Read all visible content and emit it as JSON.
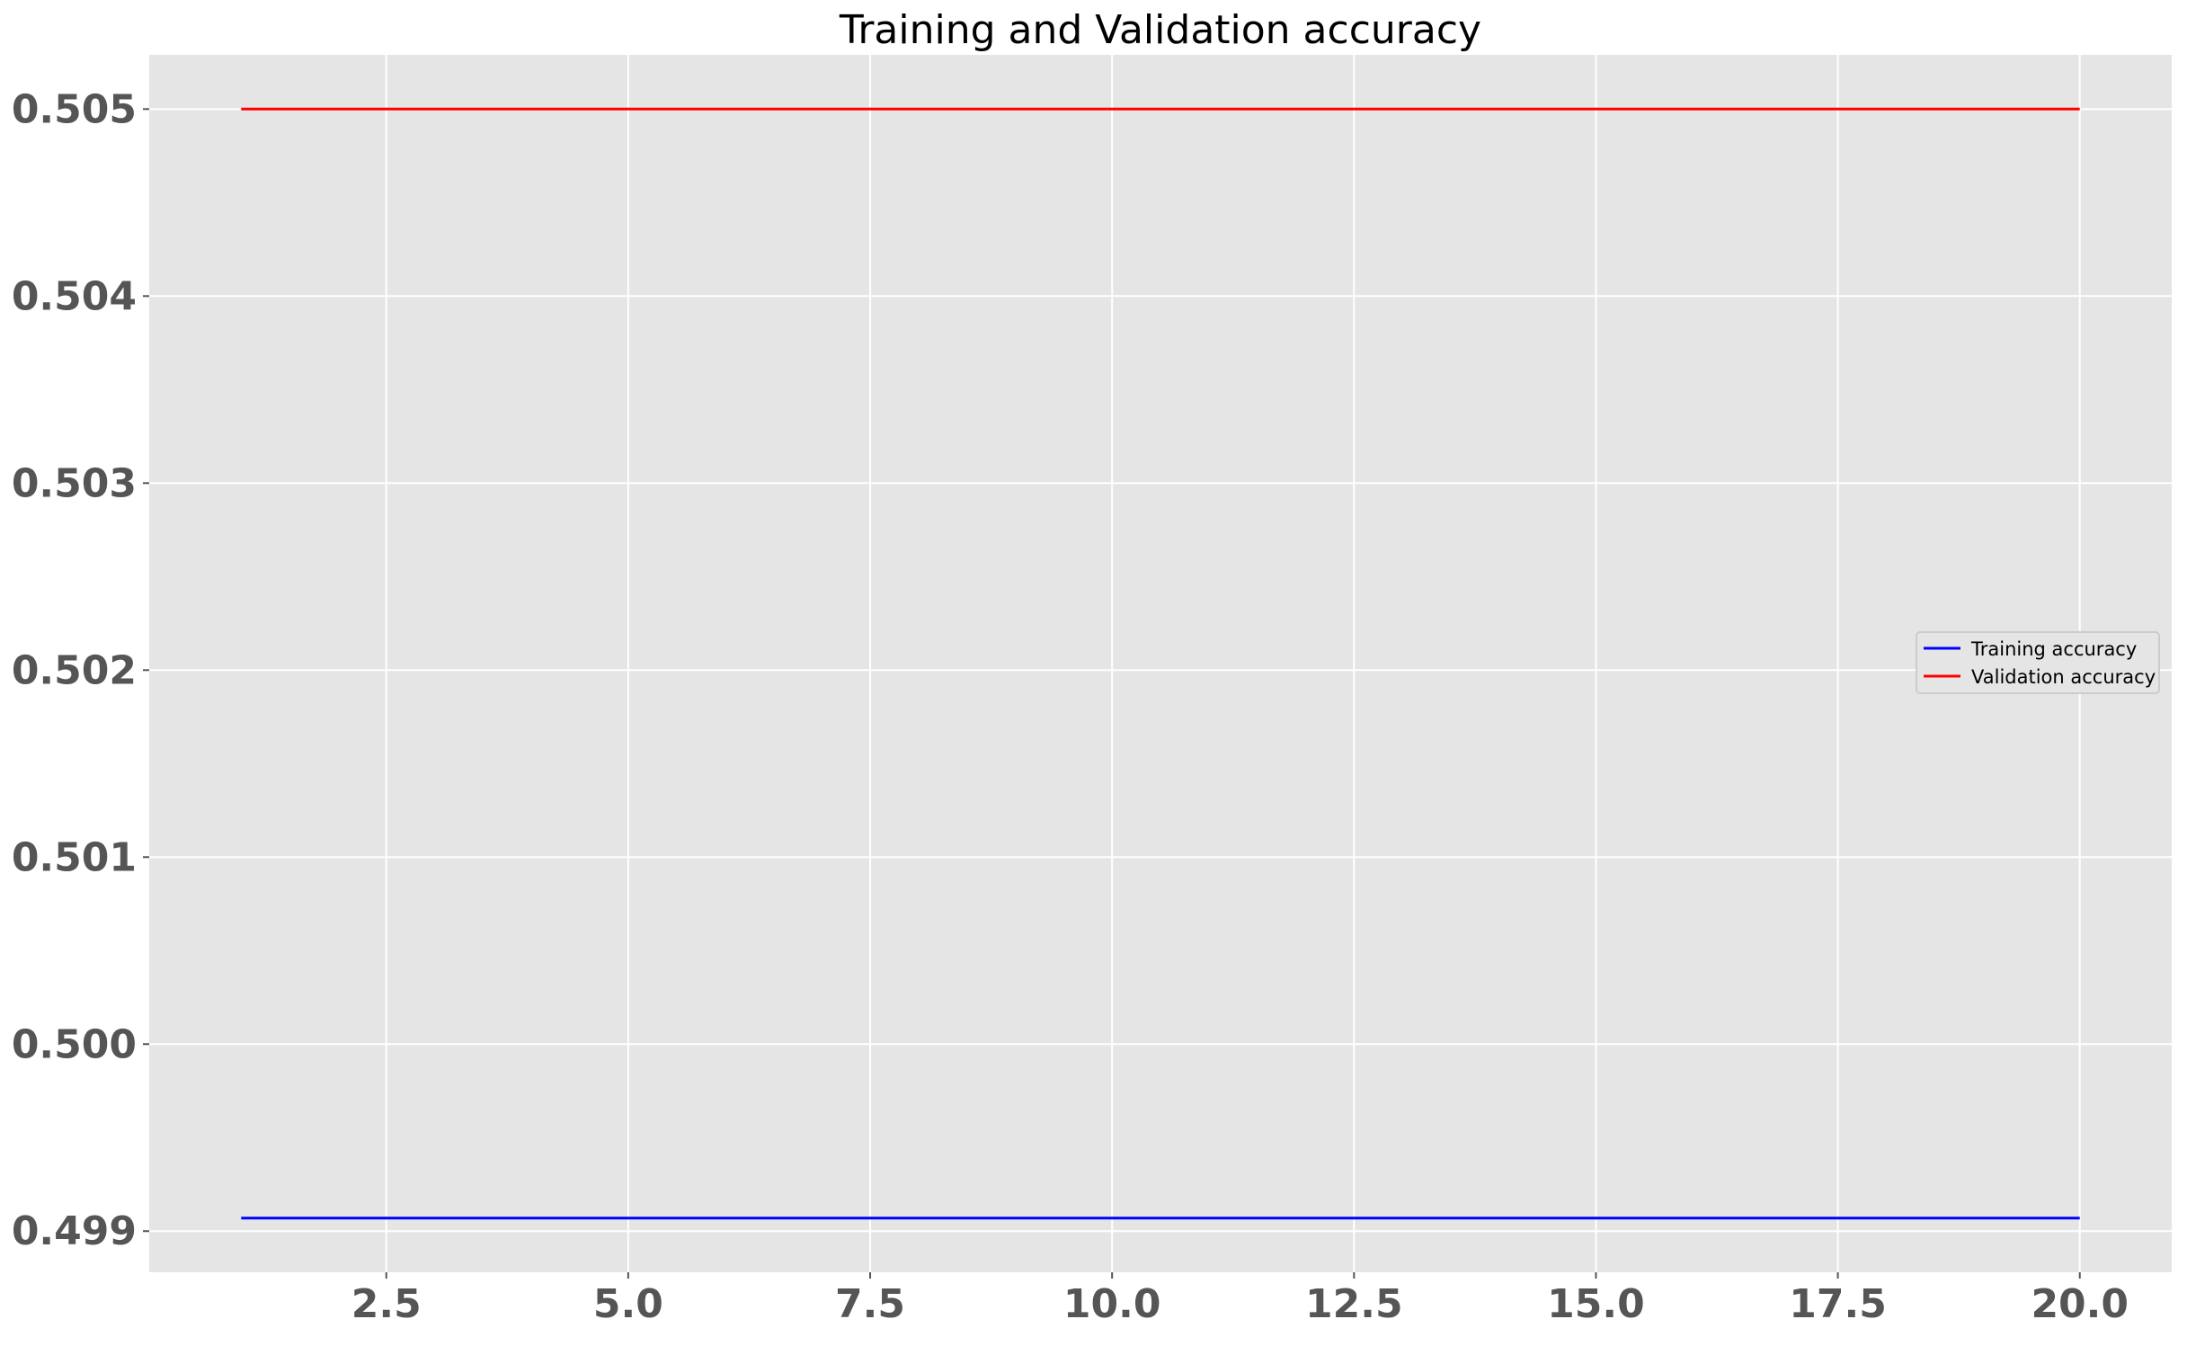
{
  "chart_data": {
    "type": "line",
    "title": "Training and Validation accuracy",
    "xlabel": "",
    "ylabel": "",
    "x": [
      1,
      2,
      3,
      4,
      5,
      6,
      7,
      8,
      9,
      10,
      11,
      12,
      13,
      14,
      15,
      16,
      17,
      18,
      19,
      20
    ],
    "series": [
      {
        "name": "Training accuracy",
        "color": "#0000ff",
        "values": [
          0.49907,
          0.49907,
          0.49907,
          0.49907,
          0.49907,
          0.49907,
          0.49907,
          0.49907,
          0.49907,
          0.49907,
          0.49907,
          0.49907,
          0.49907,
          0.49907,
          0.49907,
          0.49907,
          0.49907,
          0.49907,
          0.49907,
          0.49907
        ]
      },
      {
        "name": "Validation accuracy",
        "color": "#ff0000",
        "values": [
          0.505,
          0.505,
          0.505,
          0.505,
          0.505,
          0.505,
          0.505,
          0.505,
          0.505,
          0.505,
          0.505,
          0.505,
          0.505,
          0.505,
          0.505,
          0.505,
          0.505,
          0.505,
          0.505,
          0.505
        ]
      }
    ],
    "xlim": [
      0.05,
      20.95
    ],
    "ylim": [
      0.49878,
      0.50529
    ],
    "xticks": [
      2.5,
      5.0,
      7.5,
      10.0,
      12.5,
      15.0,
      17.5,
      20.0
    ],
    "xtick_labels": [
      "2.5",
      "5.0",
      "7.5",
      "10.0",
      "12.5",
      "15.0",
      "17.5",
      "20.0"
    ],
    "yticks": [
      0.499,
      0.5,
      0.501,
      0.502,
      0.503,
      0.504,
      0.505
    ],
    "ytick_labels": [
      "0.499",
      "0.500",
      "0.501",
      "0.502",
      "0.503",
      "0.504",
      "0.505"
    ],
    "grid": true,
    "legend_position": "center-right",
    "background_color": "#e5e5e5",
    "grid_color": "#ffffff"
  }
}
